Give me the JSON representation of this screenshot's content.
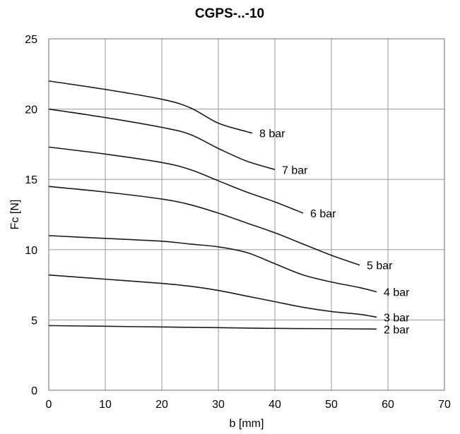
{
  "chart_data": {
    "type": "line",
    "title": "CGPS-..-10",
    "xlabel": "b [mm]",
    "ylabel": "Fc [N]",
    "xlim": [
      0,
      70
    ],
    "ylim": [
      0,
      25
    ],
    "xticks": [
      0,
      10,
      20,
      30,
      40,
      50,
      60,
      70
    ],
    "yticks": [
      0,
      5,
      10,
      15,
      20,
      25
    ],
    "xtick_labels": [
      "0",
      "10",
      "20",
      "30",
      "40",
      "50",
      "60",
      "70"
    ],
    "ytick_labels": [
      "0",
      "5",
      "10",
      "15",
      "20",
      "25"
    ],
    "grid": true,
    "legend": "none",
    "series": [
      {
        "name": "8 bar",
        "x": [
          0,
          10,
          20,
          25,
          30,
          35,
          36
        ],
        "y": [
          22.0,
          21.4,
          20.7,
          20.1,
          19.0,
          18.4,
          18.3
        ]
      },
      {
        "name": "7 bar",
        "x": [
          0,
          10,
          20,
          25,
          30,
          35,
          40
        ],
        "y": [
          20.0,
          19.4,
          18.7,
          18.2,
          17.2,
          16.3,
          15.7
        ]
      },
      {
        "name": "6 bar",
        "x": [
          0,
          10,
          20,
          25,
          30,
          35,
          40,
          45
        ],
        "y": [
          17.3,
          16.8,
          16.2,
          15.7,
          14.9,
          14.1,
          13.4,
          12.6
        ]
      },
      {
        "name": "5 bar",
        "x": [
          0,
          10,
          20,
          25,
          30,
          35,
          40,
          45,
          50,
          55
        ],
        "y": [
          14.5,
          14.1,
          13.6,
          13.2,
          12.6,
          11.9,
          11.2,
          10.4,
          9.6,
          8.9
        ]
      },
      {
        "name": "4 bar",
        "x": [
          0,
          10,
          20,
          25,
          30,
          35,
          40,
          45,
          50,
          55,
          58
        ],
        "y": [
          11.0,
          10.8,
          10.6,
          10.4,
          10.2,
          9.8,
          9.0,
          8.2,
          7.7,
          7.3,
          7.0
        ]
      },
      {
        "name": "3 bar",
        "x": [
          0,
          10,
          20,
          25,
          30,
          35,
          40,
          45,
          50,
          55,
          58
        ],
        "y": [
          8.2,
          7.9,
          7.6,
          7.4,
          7.1,
          6.7,
          6.3,
          5.9,
          5.6,
          5.4,
          5.2
        ]
      },
      {
        "name": "2 bar",
        "x": [
          0,
          10,
          20,
          30,
          40,
          50,
          58
        ],
        "y": [
          4.6,
          4.55,
          4.5,
          4.45,
          4.4,
          4.38,
          4.35
        ]
      }
    ]
  }
}
